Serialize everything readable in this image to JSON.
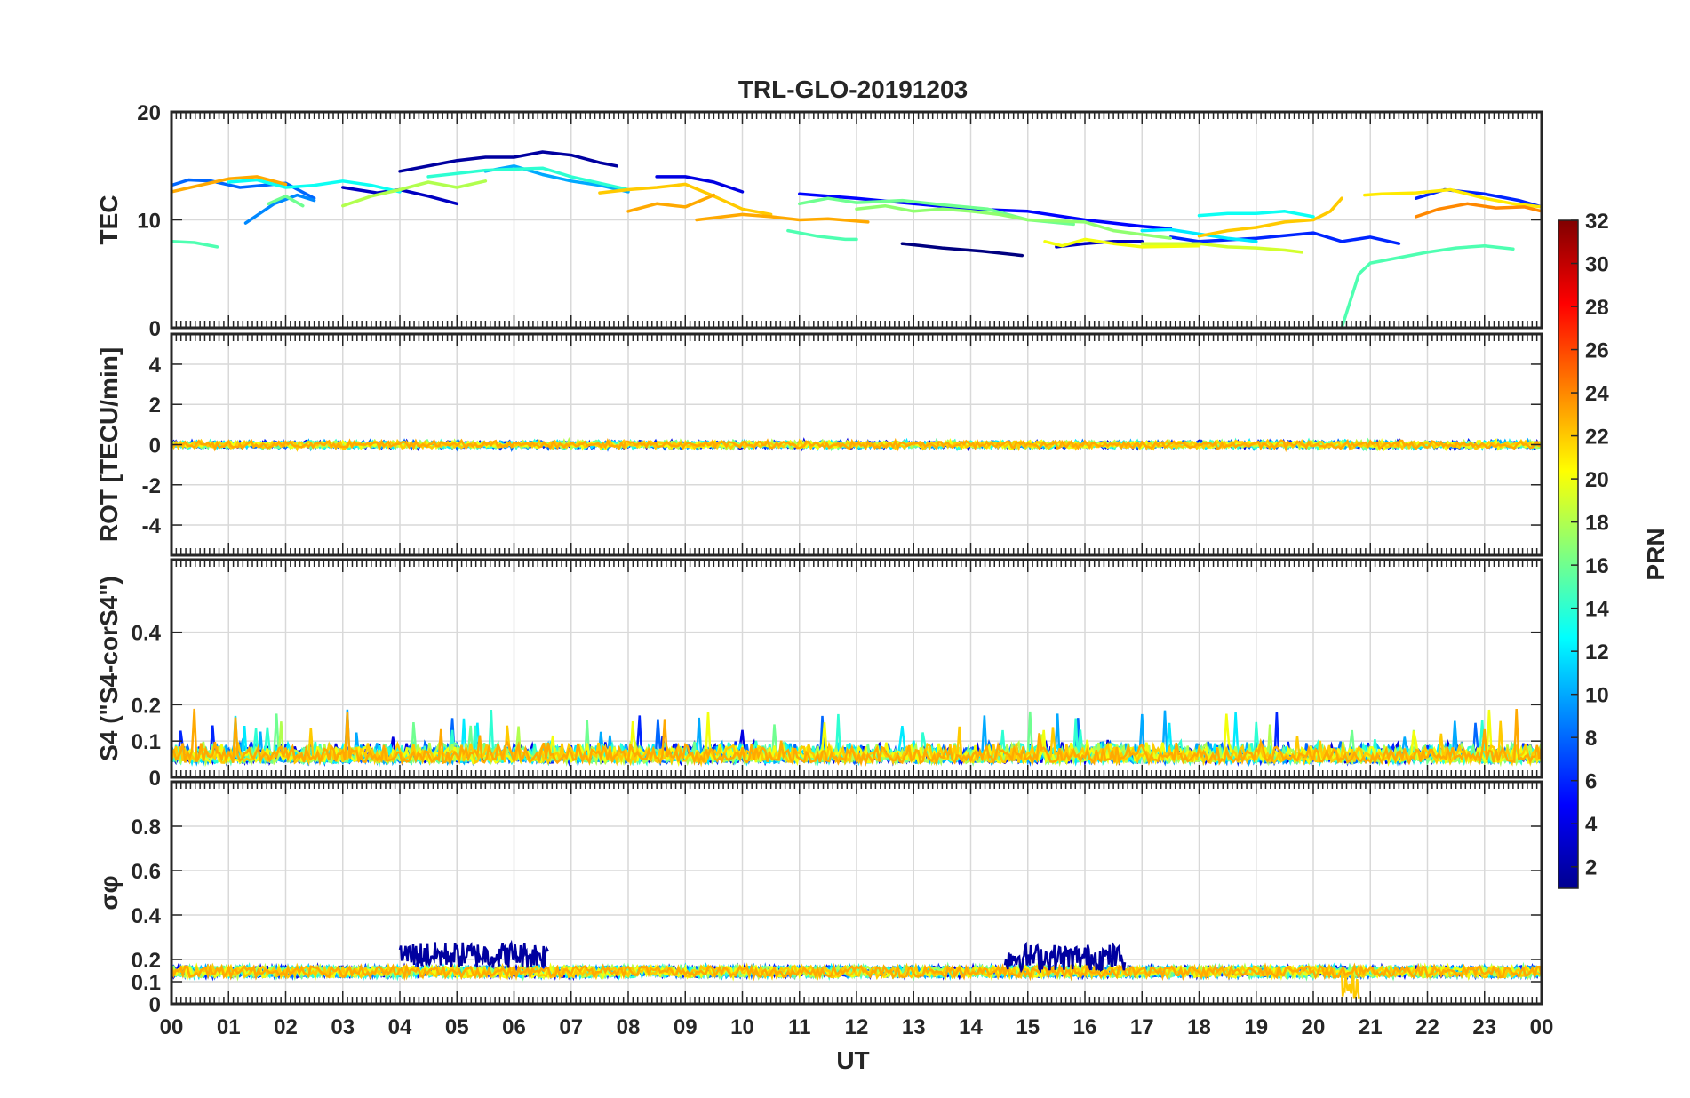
{
  "chart_data": {
    "type": "line",
    "title": "TRL-GLO-20191203",
    "xlabel": "UT",
    "x_tick_labels": [
      "00",
      "01",
      "02",
      "03",
      "04",
      "05",
      "06",
      "07",
      "08",
      "09",
      "10",
      "11",
      "12",
      "13",
      "14",
      "15",
      "16",
      "17",
      "18",
      "19",
      "20",
      "21",
      "22",
      "23",
      "00"
    ],
    "xlim": [
      0,
      24
    ],
    "panels": [
      {
        "name": "tec",
        "ylabel": "TEC",
        "ylim": [
          0,
          20
        ],
        "yticks": [
          0,
          10,
          20
        ],
        "ytick_labels": [
          "0",
          "10",
          "20"
        ],
        "series": [
          {
            "prn": 1,
            "x": [
              12.8,
              13.5,
              14.2,
              14.9
            ],
            "y": [
              7.8,
              7.4,
              7.1,
              6.7
            ]
          },
          {
            "prn": 3,
            "x": [
              15.5,
              16.0,
              16.5,
              17.0
            ],
            "y": [
              7.5,
              7.8,
              8.0,
              8.0
            ]
          },
          {
            "prn": 3,
            "x": [
              3.0,
              3.6,
              4.0,
              4.5,
              5.0
            ],
            "y": [
              13.0,
              12.5,
              12.8,
              12.2,
              11.5
            ]
          },
          {
            "prn": 2,
            "x": [
              4.0,
              5.0,
              5.5,
              6.0,
              6.5,
              7.0,
              7.5,
              7.8
            ],
            "y": [
              14.5,
              15.5,
              15.8,
              15.8,
              16.3,
              16.0,
              15.3,
              15.0
            ]
          },
          {
            "prn": 4,
            "x": [
              8.5,
              9.0,
              9.5,
              10.0
            ],
            "y": [
              14.0,
              14.0,
              13.5,
              12.6
            ]
          },
          {
            "prn": 5,
            "x": [
              11.0,
              12.0,
              13.0,
              14.0,
              15.0,
              16.0,
              17.0,
              17.5
            ],
            "y": [
              12.4,
              12.0,
              11.5,
              11.0,
              10.8,
              10.0,
              9.4,
              9.2
            ]
          },
          {
            "prn": 6,
            "x": [
              17.5,
              18.0,
              19.0,
              20.0,
              20.5,
              21.0,
              21.5
            ],
            "y": [
              8.4,
              8.0,
              8.3,
              8.8,
              8.0,
              8.4,
              7.8
            ]
          },
          {
            "prn": 6,
            "x": [
              21.8,
              22.3,
              23.0,
              23.6,
              24.0
            ],
            "y": [
              12.0,
              12.8,
              12.4,
              11.8,
              11.2
            ]
          },
          {
            "prn": 8,
            "x": [
              0.0,
              0.3,
              0.7,
              1.2,
              2.0,
              2.5
            ],
            "y": [
              13.2,
              13.7,
              13.6,
              13.0,
              13.4,
              12.0
            ]
          },
          {
            "prn": 9,
            "x": [
              1.3,
              1.8,
              2.2,
              2.5
            ],
            "y": [
              9.7,
              11.5,
              12.3,
              11.8
            ]
          },
          {
            "prn": 10,
            "x": [
              5.5,
              6.0,
              6.5,
              7.0,
              7.5,
              8.0
            ],
            "y": [
              14.5,
              15.0,
              14.2,
              13.6,
              13.2,
              12.6
            ]
          },
          {
            "prn": 12,
            "x": [
              17.0,
              17.5,
              18.0,
              18.5,
              19.0
            ],
            "y": [
              9.0,
              9.1,
              8.7,
              8.3,
              8.0
            ]
          },
          {
            "prn": 13,
            "x": [
              18.0,
              18.5,
              19.0,
              19.5,
              20.0
            ],
            "y": [
              10.4,
              10.6,
              10.6,
              10.8,
              10.3
            ]
          },
          {
            "prn": 13,
            "x": [
              1.0,
              1.5,
              2.0,
              2.5,
              3.0,
              3.5,
              4.0
            ],
            "y": [
              13.5,
              13.7,
              13.0,
              13.2,
              13.6,
              13.2,
              12.6
            ]
          },
          {
            "prn": 14,
            "x": [
              4.5,
              5.5,
              6.5,
              7.0,
              7.5,
              8.0
            ],
            "y": [
              14.0,
              14.6,
              14.8,
              14.0,
              13.4,
              12.8
            ]
          },
          {
            "prn": 15,
            "x": [
              20.5,
              20.8,
              21.0,
              21.5,
              22.0,
              22.5,
              23.0,
              23.5
            ],
            "y": [
              0.0,
              5.0,
              6.0,
              6.5,
              7.0,
              7.4,
              7.6,
              7.3
            ]
          },
          {
            "prn": 15,
            "x": [
              0.0,
              0.4,
              0.8
            ],
            "y": [
              8.0,
              7.9,
              7.5
            ]
          },
          {
            "prn": 15,
            "x": [
              10.8,
              11.3,
              11.8,
              12.0
            ],
            "y": [
              9.0,
              8.5,
              8.2,
              8.2
            ]
          },
          {
            "prn": 16,
            "x": [
              11.0,
              11.5,
              12.0,
              12.8,
              13.5,
              14.3,
              15.0,
              15.8
            ],
            "y": [
              11.5,
              12.0,
              11.6,
              11.8,
              11.4,
              11.0,
              10.0,
              9.6
            ]
          },
          {
            "prn": 16,
            "x": [
              1.7,
              2.0,
              2.3
            ],
            "y": [
              11.5,
              12.2,
              11.3
            ]
          },
          {
            "prn": 17,
            "x": [
              12.0,
              12.5,
              13.0,
              13.5,
              14.0,
              14.5,
              15.0,
              16.0,
              16.5,
              17.5
            ],
            "y": [
              11.0,
              11.3,
              10.8,
              11.0,
              10.8,
              10.5,
              10.0,
              9.8,
              9.0,
              8.3
            ]
          },
          {
            "prn": 18,
            "x": [
              3.0,
              3.5,
              4.0,
              4.5,
              5.0,
              5.5
            ],
            "y": [
              11.3,
              12.2,
              12.8,
              13.5,
              13.0,
              13.6
            ]
          },
          {
            "prn": 19,
            "x": [
              17.0,
              18.0,
              18.5,
              19.0,
              19.5,
              19.8
            ],
            "y": [
              7.8,
              7.8,
              7.5,
              7.4,
              7.2,
              7.0
            ]
          },
          {
            "prn": 20,
            "x": [
              15.3,
              15.6,
              16.0,
              16.5,
              17.0,
              18.0
            ],
            "y": [
              8.0,
              7.6,
              8.2,
              7.8,
              7.5,
              7.6
            ]
          },
          {
            "prn": 21,
            "x": [
              20.9,
              21.2,
              21.8,
              22.4,
              23.0,
              23.5,
              24.0
            ],
            "y": [
              12.3,
              12.4,
              12.5,
              12.8,
              12.0,
              11.5,
              11.2
            ]
          },
          {
            "prn": 22,
            "x": [
              7.5,
              8.0,
              8.5,
              9.0,
              9.5,
              10.0,
              10.5
            ],
            "y": [
              12.5,
              12.8,
              13.0,
              13.3,
              12.2,
              11.0,
              10.5
            ]
          },
          {
            "prn": 22,
            "x": [
              18.0,
              18.5,
              19.0,
              19.5,
              20.0,
              20.3,
              20.5
            ],
            "y": [
              8.5,
              9.0,
              9.3,
              9.8,
              10.0,
              10.8,
              12.0
            ]
          },
          {
            "prn": 23,
            "x": [
              0.0,
              0.5,
              1.0,
              1.5,
              2.0
            ],
            "y": [
              12.6,
              13.2,
              13.8,
              14.0,
              13.3
            ]
          },
          {
            "prn": 23,
            "x": [
              9.2,
              10.0,
              10.5,
              11.0,
              11.5,
              12.2
            ],
            "y": [
              10.0,
              10.5,
              10.3,
              10.0,
              10.1,
              9.8
            ]
          },
          {
            "prn": 23,
            "x": [
              8.0,
              8.5,
              9.0,
              9.5
            ],
            "y": [
              10.8,
              11.5,
              11.2,
              12.3
            ]
          },
          {
            "prn": 24,
            "x": [
              21.8,
              22.2,
              22.7,
              23.2,
              23.7,
              24.0
            ],
            "y": [
              10.3,
              11.0,
              11.5,
              11.1,
              11.2,
              10.8
            ]
          }
        ]
      },
      {
        "name": "rot",
        "ylabel": "ROT [TECU/min]",
        "ylim": [
          -5.5,
          5.5
        ],
        "yticks": [
          -4,
          -2,
          0,
          2,
          4
        ],
        "ytick_labels": [
          "-4",
          "-2",
          "0",
          "2",
          "4"
        ],
        "noise": {
          "base": 0.0,
          "amplitude": 0.22
        }
      },
      {
        "name": "s4",
        "ylabel": "S4 (\"S4-corS4\")",
        "ylim": [
          0,
          0.6
        ],
        "yticks": [
          0,
          0.1,
          0.2,
          0.4
        ],
        "ytick_labels": [
          "0",
          "0.1",
          "0.2",
          "0.4"
        ],
        "noise": {
          "base": 0.04,
          "amplitude": 0.06,
          "max_spike": 0.19
        }
      },
      {
        "name": "sigma-phi",
        "ylabel": "σφ",
        "ylim": [
          0,
          1
        ],
        "yticks": [
          0,
          0.1,
          0.2,
          0.4,
          0.6,
          0.8
        ],
        "ytick_labels": [
          "0",
          "0.1",
          "0.2",
          "0.4",
          "0.6",
          "0.8"
        ],
        "noise": {
          "base": 0.14,
          "amplitude": 0.05
        },
        "events": [
          {
            "x_start": 4.0,
            "x_end": 6.6,
            "level": 0.22,
            "prn": 2
          },
          {
            "x_start": 14.6,
            "x_end": 16.7,
            "level": 0.21,
            "prn": 2
          },
          {
            "x_start": 20.5,
            "x_end": 20.8,
            "level": 0.08,
            "prn": 22
          }
        ]
      }
    ],
    "colorbar": {
      "label": "PRN",
      "range": [
        1,
        32
      ],
      "tick_labels": [
        "2",
        "4",
        "6",
        "8",
        "10",
        "12",
        "14",
        "16",
        "18",
        "20",
        "22",
        "24",
        "26",
        "28",
        "30",
        "32"
      ],
      "colormap": "jet"
    }
  }
}
